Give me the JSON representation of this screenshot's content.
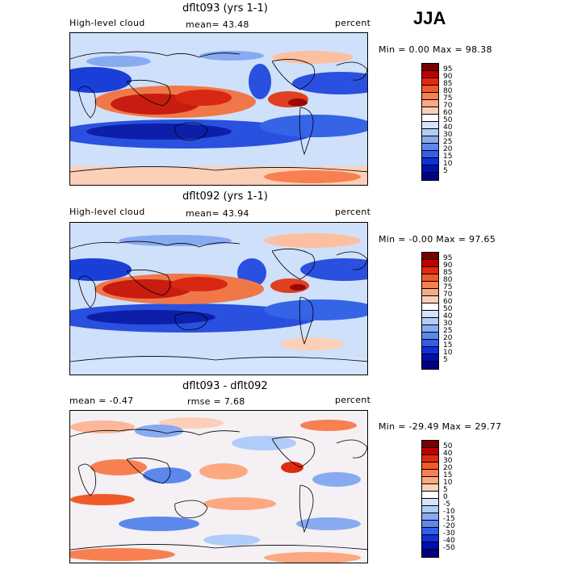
{
  "season": "JJA",
  "units": "percent",
  "panels": [
    {
      "title": "dflt093 (yrs 1-1)",
      "left_label": "High-level cloud",
      "stat_label": "mean=  43.48",
      "right_label": "percent",
      "range_label": "Min =    0.00 Max =   98.38",
      "mean": 43.48,
      "min": 0.0,
      "max": 98.38,
      "colorbar": {
        "labels": [
          "95",
          "90",
          "85",
          "80",
          "75",
          "70",
          "60",
          "50",
          "40",
          "30",
          "25",
          "20",
          "15",
          "10",
          "5"
        ],
        "colors": [
          "#780000",
          "#c00000",
          "#e02a10",
          "#f05a28",
          "#f88050",
          "#fca880",
          "#fcd0b8",
          "#ffffff",
          "#d4e4fc",
          "#b0ccf8",
          "#88aaf0",
          "#5c88ec",
          "#3060e8",
          "#1030d8",
          "#0010b0",
          "#000080"
        ]
      }
    },
    {
      "title": "dflt092 (yrs 1-1)",
      "left_label": "High-level cloud",
      "stat_label": "mean=  43.94",
      "right_label": "percent",
      "range_label": "Min =   -0.00 Max =   97.65",
      "mean": 43.94,
      "min": -0.0,
      "max": 97.65,
      "colorbar": {
        "labels": [
          "95",
          "90",
          "85",
          "80",
          "75",
          "70",
          "60",
          "50",
          "40",
          "30",
          "25",
          "20",
          "15",
          "10",
          "5"
        ],
        "colors": [
          "#780000",
          "#c00000",
          "#e02a10",
          "#f05a28",
          "#f88050",
          "#fca880",
          "#fcd0b8",
          "#ffffff",
          "#d4e4fc",
          "#b0ccf8",
          "#88aaf0",
          "#5c88ec",
          "#3060e8",
          "#1030d8",
          "#0010b0",
          "#000080"
        ]
      }
    },
    {
      "title": "dflt093 - dflt092",
      "left_label": "mean =   -0.47",
      "stat_label": "rmse =   7.68",
      "right_label": "percent",
      "range_label": "Min = -29.49 Max =  29.77",
      "mean": -0.47,
      "rmse": 7.68,
      "min": -29.49,
      "max": 29.77,
      "colorbar": {
        "labels": [
          "50",
          "40",
          "30",
          "20",
          "15",
          "10",
          "5",
          "0",
          "-5",
          "-10",
          "-15",
          "-20",
          "-30",
          "-40",
          "-50"
        ],
        "colors": [
          "#780000",
          "#c00000",
          "#e02a10",
          "#f05a28",
          "#f88050",
          "#fca880",
          "#fcd0b8",
          "#ffffff",
          "#d4e4fc",
          "#b0ccf8",
          "#88aaf0",
          "#5c88ec",
          "#3060e8",
          "#1030d8",
          "#0010b0",
          "#000080"
        ]
      }
    }
  ]
}
